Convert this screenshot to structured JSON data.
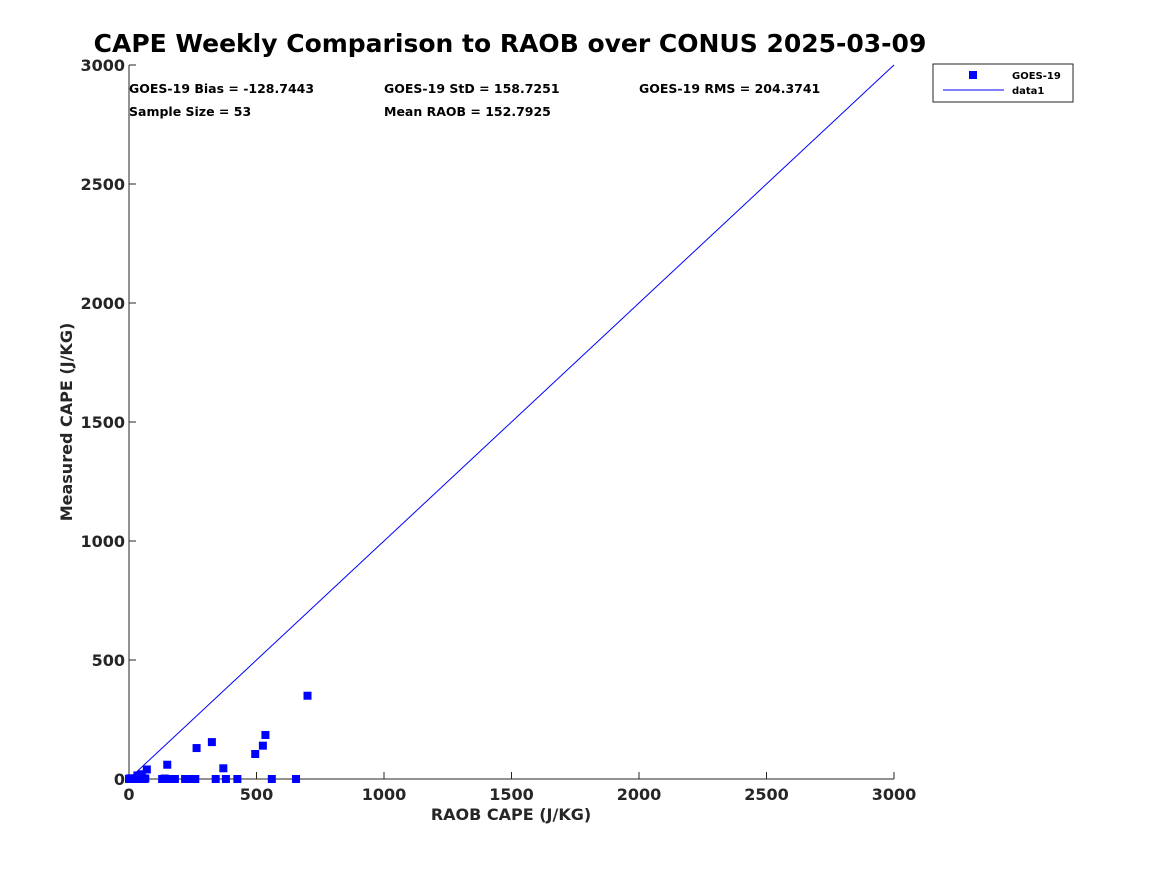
{
  "chart_data": {
    "type": "scatter",
    "title": "CAPE Weekly Comparison to RAOB over CONUS 2025-03-09",
    "xlabel": "RAOB CAPE (J/KG)",
    "ylabel": "Measured CAPE (J/KG)",
    "xlim": [
      0,
      3000
    ],
    "ylim": [
      0,
      3000
    ],
    "xticks": [
      0,
      500,
      1000,
      1500,
      2000,
      2500,
      3000
    ],
    "yticks": [
      0,
      500,
      1000,
      1500,
      2000,
      2500,
      3000
    ],
    "xtick_labels": [
      "0",
      "500",
      "1000",
      "1500",
      "2000",
      "2500",
      "3000"
    ],
    "ytick_labels": [
      "0",
      "500",
      "1000",
      "1500",
      "2000",
      "2500",
      "3000"
    ],
    "grid": false,
    "legend_position": "top-right outside",
    "stats": {
      "bias": "GOES-19 Bias = -128.7443",
      "std": "GOES-19 StD = 158.7251",
      "rms": "GOES-19 RMS = 204.3741",
      "sample_size": "Sample Size = 53",
      "mean_raob": "Mean RAOB = 152.7925"
    },
    "series": [
      {
        "name": "GOES-19",
        "kind": "scatter",
        "marker": "square",
        "color": "#0000ff",
        "points": [
          [
            0,
            0
          ],
          [
            3,
            2
          ],
          [
            6,
            0
          ],
          [
            9,
            3
          ],
          [
            12,
            0
          ],
          [
            15,
            2
          ],
          [
            18,
            0
          ],
          [
            22,
            2
          ],
          [
            26,
            0
          ],
          [
            30,
            3
          ],
          [
            33,
            15
          ],
          [
            36,
            0
          ],
          [
            40,
            2
          ],
          [
            45,
            0
          ],
          [
            50,
            20
          ],
          [
            55,
            3
          ],
          [
            60,
            0
          ],
          [
            64,
            2
          ],
          [
            70,
            40
          ],
          [
            130,
            0
          ],
          [
            140,
            2
          ],
          [
            150,
            60
          ],
          [
            155,
            0
          ],
          [
            170,
            0
          ],
          [
            180,
            0
          ],
          [
            220,
            0
          ],
          [
            240,
            0
          ],
          [
            260,
            0
          ],
          [
            265,
            130
          ],
          [
            325,
            155
          ],
          [
            340,
            0
          ],
          [
            370,
            45
          ],
          [
            380,
            0
          ],
          [
            425,
            0
          ],
          [
            495,
            105
          ],
          [
            525,
            140
          ],
          [
            535,
            185
          ],
          [
            560,
            0
          ],
          [
            655,
            0
          ],
          [
            700,
            350
          ]
        ]
      },
      {
        "name": "data1",
        "kind": "line",
        "color": "#0000ff",
        "points": [
          [
            0,
            0
          ],
          [
            3000,
            3000
          ]
        ]
      }
    ]
  }
}
